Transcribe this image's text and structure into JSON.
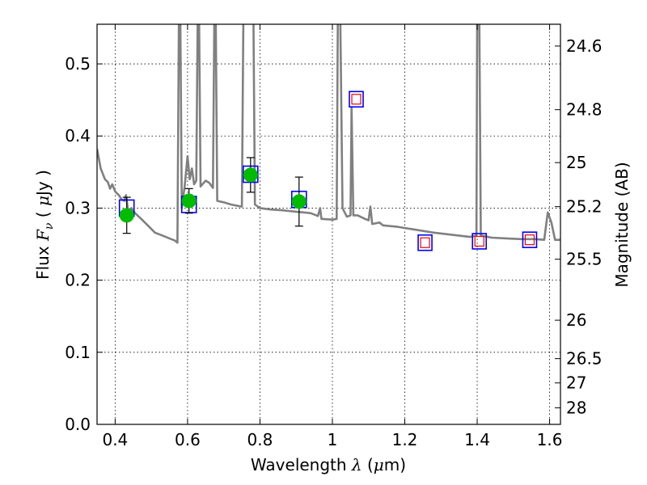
{
  "chart_data": {
    "type": "scatter",
    "title": "",
    "xlabel": {
      "prefix": "Wavelength  ",
      "symbol": "λ",
      "unit_open": " (",
      "unit_mu": "μ",
      "unit_rest": "m)"
    },
    "ylabel": {
      "prefix": "Flux  ",
      "symbol": "F",
      "sub": "ν",
      "unit_open": "  ( ",
      "unit_mu": "μ",
      "unit_rest": "Jy )"
    },
    "y2label": "Magnitude (AB)",
    "xlim": [
      0.35,
      1.63
    ],
    "ylim": [
      0.0,
      0.555
    ],
    "grid": true,
    "x_ticks": [
      {
        "value": 0.4,
        "label": "0.4"
      },
      {
        "value": 0.6,
        "label": "0.6"
      },
      {
        "value": 0.8,
        "label": "0.8"
      },
      {
        "value": 1.0,
        "label": "1"
      },
      {
        "value": 1.2,
        "label": "1.2"
      },
      {
        "value": 1.4,
        "label": "1.4"
      },
      {
        "value": 1.6,
        "label": "1.6"
      }
    ],
    "y_ticks": [
      {
        "value": 0.0,
        "label": "0.0"
      },
      {
        "value": 0.1,
        "label": "0.1"
      },
      {
        "value": 0.2,
        "label": "0.2"
      },
      {
        "value": 0.3,
        "label": "0.3"
      },
      {
        "value": 0.4,
        "label": "0.4"
      },
      {
        "value": 0.5,
        "label": "0.5"
      }
    ],
    "y2_ticks": [
      {
        "flux": 0.5248,
        "label": "24.6"
      },
      {
        "flux": 0.4365,
        "label": "24.8"
      },
      {
        "flux": 0.3631,
        "label": "25"
      },
      {
        "flux": 0.302,
        "label": "25.2"
      },
      {
        "flux": 0.2291,
        "label": "25.5"
      },
      {
        "flux": 0.1445,
        "label": "26"
      },
      {
        "flux": 0.0912,
        "label": "26.5"
      },
      {
        "flux": 0.0575,
        "label": "27"
      },
      {
        "flux": 0.0229,
        "label": "28"
      }
    ],
    "series": [
      {
        "kind": "model",
        "color": "#808080",
        "points": [
          [
            0.35,
            0.382
          ],
          [
            0.36,
            0.355
          ],
          [
            0.372,
            0.34
          ],
          [
            0.38,
            0.336
          ],
          [
            0.386,
            0.327
          ],
          [
            0.392,
            0.333
          ],
          [
            0.4,
            0.323
          ],
          [
            0.41,
            0.318
          ],
          [
            0.418,
            0.312
          ],
          [
            0.425,
            0.31
          ],
          [
            0.43,
            0.318
          ],
          [
            0.436,
            0.295
          ],
          [
            0.445,
            0.3
          ],
          [
            0.455,
            0.293
          ],
          [
            0.47,
            0.286
          ],
          [
            0.49,
            0.276
          ],
          [
            0.51,
            0.266
          ],
          [
            0.53,
            0.262
          ],
          [
            0.55,
            0.258
          ],
          [
            0.565,
            0.255
          ],
          [
            0.572,
            0.252
          ],
          [
            0.576,
            0.56
          ],
          [
            0.58,
            0.56
          ],
          [
            0.584,
            0.3
          ],
          [
            0.592,
            0.33
          ],
          [
            0.6,
            0.372
          ],
          [
            0.606,
            0.34
          ],
          [
            0.612,
            0.355
          ],
          [
            0.618,
            0.333
          ],
          [
            0.624,
            0.338
          ],
          [
            0.628,
            0.56
          ],
          [
            0.632,
            0.56
          ],
          [
            0.636,
            0.33
          ],
          [
            0.65,
            0.338
          ],
          [
            0.66,
            0.335
          ],
          [
            0.67,
            0.328
          ],
          [
            0.674,
            0.56
          ],
          [
            0.678,
            0.56
          ],
          [
            0.682,
            0.31
          ],
          [
            0.7,
            0.308
          ],
          [
            0.72,
            0.305
          ],
          [
            0.74,
            0.303
          ],
          [
            0.75,
            0.302
          ],
          [
            0.754,
            0.56
          ],
          [
            0.77,
            0.56
          ],
          [
            0.782,
            0.56
          ],
          [
            0.786,
            0.305
          ],
          [
            0.8,
            0.3
          ],
          [
            0.83,
            0.298
          ],
          [
            0.86,
            0.297
          ],
          [
            0.88,
            0.296
          ],
          [
            0.9,
            0.295
          ],
          [
            0.94,
            0.293
          ],
          [
            0.96,
            0.289
          ],
          [
            0.966,
            0.3
          ],
          [
            0.97,
            0.285
          ],
          [
            1.0,
            0.284
          ],
          [
            1.012,
            0.285
          ],
          [
            1.015,
            0.56
          ],
          [
            1.022,
            0.56
          ],
          [
            1.028,
            0.3
          ],
          [
            1.04,
            0.288
          ],
          [
            1.05,
            0.29
          ],
          [
            1.053,
            0.44
          ],
          [
            1.058,
            0.29
          ],
          [
            1.07,
            0.29
          ],
          [
            1.09,
            0.285
          ],
          [
            1.1,
            0.283
          ],
          [
            1.105,
            0.302
          ],
          [
            1.11,
            0.278
          ],
          [
            1.13,
            0.28
          ],
          [
            1.14,
            0.276
          ],
          [
            1.18,
            0.274
          ],
          [
            1.23,
            0.27
          ],
          [
            1.28,
            0.266
          ],
          [
            1.33,
            0.263
          ],
          [
            1.38,
            0.26
          ],
          [
            1.398,
            0.262
          ],
          [
            1.4,
            0.56
          ],
          [
            1.406,
            0.56
          ],
          [
            1.41,
            0.262
          ],
          [
            1.44,
            0.259
          ],
          [
            1.48,
            0.258
          ],
          [
            1.52,
            0.257
          ],
          [
            1.56,
            0.257
          ],
          [
            1.585,
            0.256
          ],
          [
            1.595,
            0.294
          ],
          [
            1.605,
            0.28
          ],
          [
            1.615,
            0.256
          ],
          [
            1.63,
            0.256
          ]
        ]
      },
      {
        "kind": "observed",
        "color": "#00bb00",
        "x": [
          0.432,
          0.604,
          0.774,
          0.908
        ],
        "y": [
          0.29,
          0.31,
          0.346,
          0.309
        ],
        "yerr": [
          0.025,
          0.017,
          0.024,
          0.034
        ]
      },
      {
        "kind": "model-boxes",
        "color": "#0000ff",
        "x": [
          0.432,
          0.604,
          0.774,
          0.908
        ],
        "y": [
          0.3,
          0.305,
          0.347,
          0.312
        ]
      },
      {
        "kind": "predicted",
        "color": "#0000ff",
        "inner_color": "#ee0000",
        "x": [
          1.066,
          1.256,
          1.406,
          1.545
        ],
        "y": [
          0.451,
          0.252,
          0.254,
          0.256
        ]
      }
    ]
  }
}
